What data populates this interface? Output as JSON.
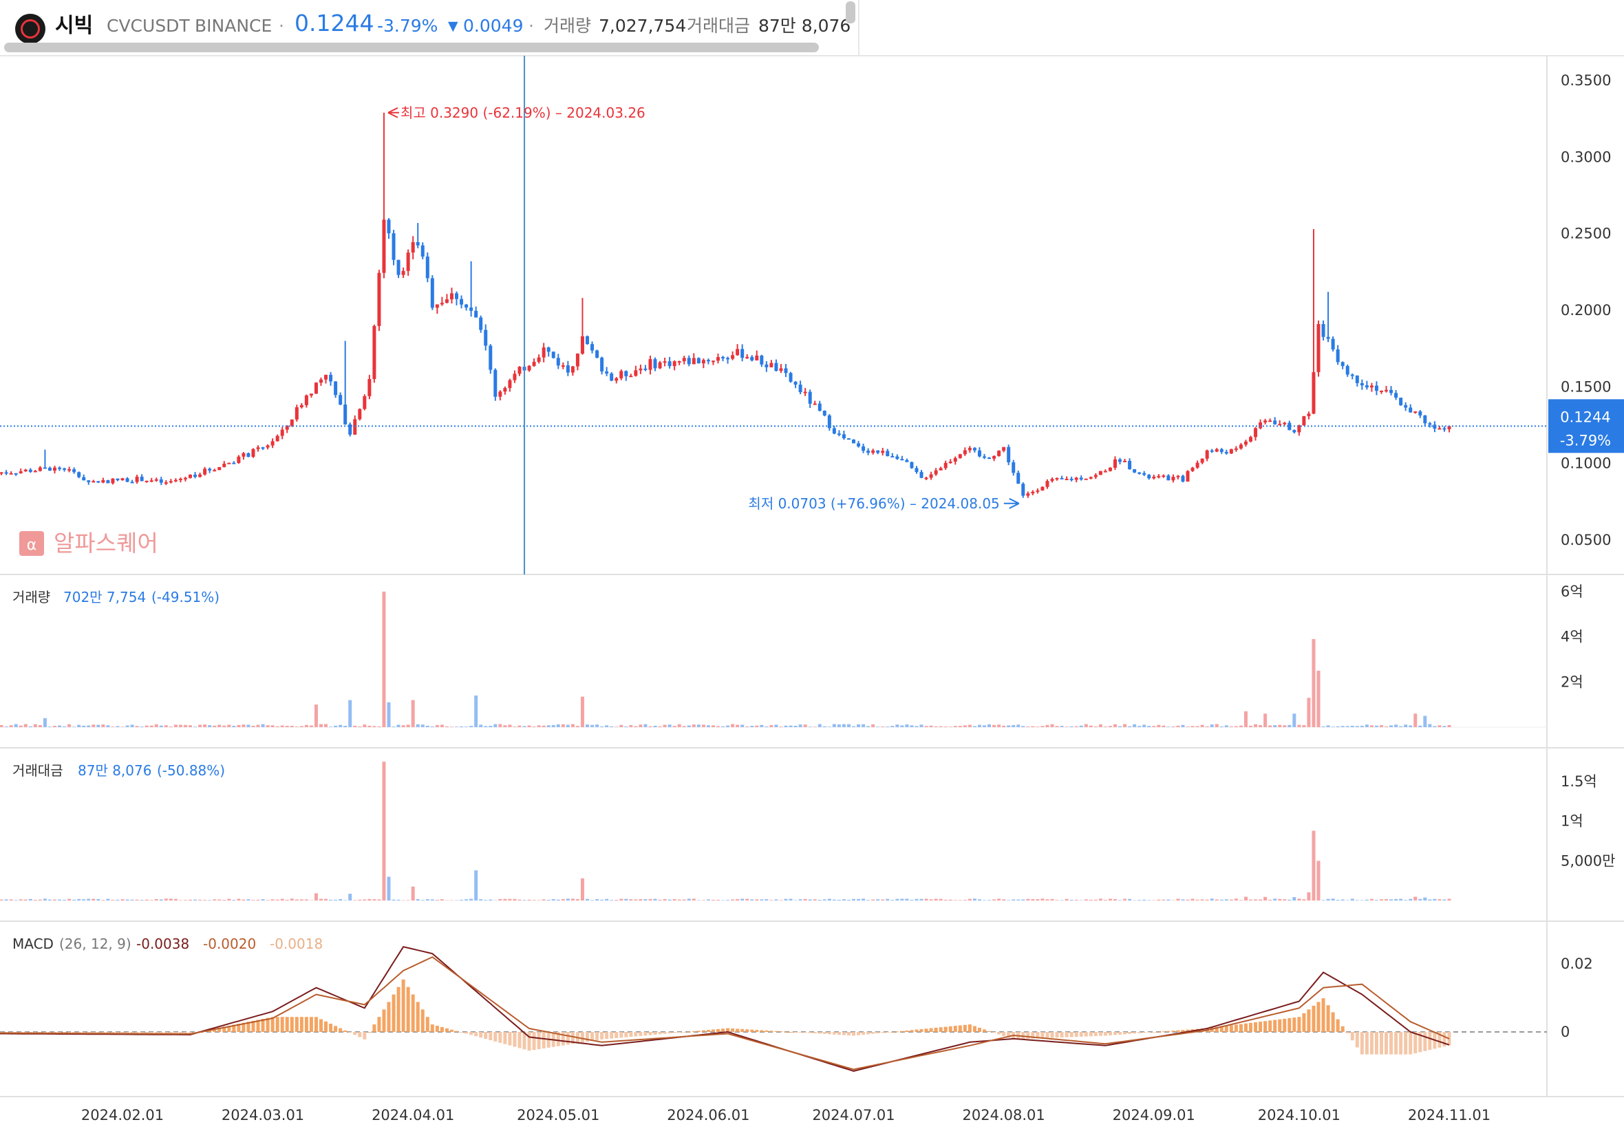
{
  "header": {
    "name": "시빅",
    "symbol": "CVCUSDT",
    "exchange": "BINANCE",
    "sep": "·",
    "price": "0.1244",
    "change_pct": "-3.79%",
    "change_arrow": "▼",
    "change_abs": "0.0049",
    "volume_label": "거래량",
    "volume_value": "7,027,754",
    "amount_label": "거래대금",
    "amount_value": "87만 8,076"
  },
  "watermark": "알파스퀘어",
  "panels": {
    "volume": {
      "label": "거래량",
      "value": "702만 7,754",
      "change": "(-49.51%)",
      "ticks": [
        "6억",
        "4억",
        "2억"
      ]
    },
    "amount": {
      "label": "거래대금",
      "value": "87만 8,076",
      "change": "(-50.88%)",
      "ticks": [
        "1.5억",
        "1억",
        "5,000만"
      ]
    },
    "macd": {
      "label": "MACD",
      "params": "(26, 12, 9)",
      "v1": "-0.0038",
      "v2": "-0.0020",
      "v3": "-0.0018",
      "ticks": [
        "0.02",
        "0"
      ]
    }
  },
  "colors": {
    "up": "#e8343a",
    "down": "#2a7be4",
    "up_vol": "#f5a3a3",
    "down_vol": "#94bdf2",
    "macd_line": "#7a1c1c",
    "signal_line": "#b85c2c",
    "hist_pos": "#f4a462",
    "hist_neg": "#f4c7a8"
  },
  "chart_data": {
    "type": "candlestick",
    "title": "",
    "xlabel": "",
    "ylabel": "",
    "ylim": [
      0.03,
      0.365
    ],
    "y_ticks": [
      "0.3500",
      "0.3000",
      "0.2500",
      "0.2000",
      "0.1500",
      "0.1000",
      "0.0500"
    ],
    "x_ticks": [
      "2024.02.01",
      "2024.03.01",
      "2024.04.01",
      "2024.05.01",
      "2024.06.01",
      "2024.07.01",
      "2024.08.01",
      "2024.09.01",
      "2024.10.01",
      "2024.11.01"
    ],
    "current_price": "0.1244",
    "current_change": "-3.79%",
    "high_annotation": "최고 0.3290 (-62.19%) – 2024.03.26",
    "low_annotation": "최저 0.0703 (+76.96%) – 2024.08.05",
    "close_path": [
      {
        "date": "2024-01-06",
        "price": 0.094
      },
      {
        "date": "2024-01-20",
        "price": 0.097
      },
      {
        "date": "2024-01-25",
        "price": 0.088
      },
      {
        "date": "2024-02-05",
        "price": 0.09
      },
      {
        "date": "2024-02-10",
        "price": 0.087
      },
      {
        "date": "2024-02-20",
        "price": 0.097
      },
      {
        "date": "2024-03-01",
        "price": 0.11
      },
      {
        "date": "2024-03-05",
        "price": 0.12
      },
      {
        "date": "2024-03-09",
        "price": 0.14
      },
      {
        "date": "2024-03-14",
        "price": 0.16
      },
      {
        "date": "2024-03-19",
        "price": 0.12
      },
      {
        "date": "2024-03-23",
        "price": 0.155
      },
      {
        "date": "2024-03-26",
        "price": 0.26
      },
      {
        "date": "2024-03-29",
        "price": 0.225
      },
      {
        "date": "2024-04-02",
        "price": 0.245
      },
      {
        "date": "2024-04-05",
        "price": 0.205
      },
      {
        "date": "2024-04-10",
        "price": 0.21
      },
      {
        "date": "2024-04-15",
        "price": 0.19
      },
      {
        "date": "2024-04-18",
        "price": 0.145
      },
      {
        "date": "2024-04-23",
        "price": 0.16
      },
      {
        "date": "2024-04-28",
        "price": 0.175
      },
      {
        "date": "2024-05-03",
        "price": 0.16
      },
      {
        "date": "2024-05-06",
        "price": 0.18
      },
      {
        "date": "2024-05-12",
        "price": 0.155
      },
      {
        "date": "2024-05-20",
        "price": 0.165
      },
      {
        "date": "2024-06-01",
        "price": 0.168
      },
      {
        "date": "2024-06-08",
        "price": 0.172
      },
      {
        "date": "2024-06-15",
        "price": 0.162
      },
      {
        "date": "2024-06-20",
        "price": 0.148
      },
      {
        "date": "2024-06-28",
        "price": 0.118
      },
      {
        "date": "2024-07-02",
        "price": 0.11
      },
      {
        "date": "2024-07-10",
        "price": 0.105
      },
      {
        "date": "2024-07-15",
        "price": 0.09
      },
      {
        "date": "2024-07-20",
        "price": 0.1
      },
      {
        "date": "2024-07-24",
        "price": 0.11
      },
      {
        "date": "2024-07-28",
        "price": 0.103
      },
      {
        "date": "2024-08-01",
        "price": 0.11
      },
      {
        "date": "2024-08-05",
        "price": 0.078
      },
      {
        "date": "2024-08-10",
        "price": 0.088
      },
      {
        "date": "2024-08-20",
        "price": 0.092
      },
      {
        "date": "2024-08-25",
        "price": 0.103
      },
      {
        "date": "2024-08-30",
        "price": 0.091
      },
      {
        "date": "2024-09-07",
        "price": 0.09
      },
      {
        "date": "2024-09-12",
        "price": 0.108
      },
      {
        "date": "2024-09-18",
        "price": 0.108
      },
      {
        "date": "2024-09-24",
        "price": 0.13
      },
      {
        "date": "2024-09-30",
        "price": 0.122
      },
      {
        "date": "2024-10-03",
        "price": 0.135
      },
      {
        "date": "2024-10-05",
        "price": 0.19
      },
      {
        "date": "2024-10-08",
        "price": 0.175
      },
      {
        "date": "2024-10-11",
        "price": 0.158
      },
      {
        "date": "2024-10-18",
        "price": 0.148
      },
      {
        "date": "2024-10-24",
        "price": 0.135
      },
      {
        "date": "2024-10-28",
        "price": 0.125
      },
      {
        "date": "2024-11-01",
        "price": 0.1244
      }
    ],
    "wick_highs": [
      {
        "date": "2024-01-16",
        "price": 0.109
      },
      {
        "date": "2024-03-18",
        "price": 0.18
      },
      {
        "date": "2024-03-26",
        "price": 0.329
      },
      {
        "date": "2024-04-02",
        "price": 0.257
      },
      {
        "date": "2024-04-13",
        "price": 0.232
      },
      {
        "date": "2024-05-06",
        "price": 0.208
      },
      {
        "date": "2024-10-04",
        "price": 0.253
      },
      {
        "date": "2024-10-07",
        "price": 0.212
      }
    ],
    "volume_spikes": [
      {
        "date": "2024-01-16",
        "value": 0.4
      },
      {
        "date": "2024-03-12",
        "value": 1.0
      },
      {
        "date": "2024-03-19",
        "value": 1.2
      },
      {
        "date": "2024-03-26",
        "value": 6.0
      },
      {
        "date": "2024-03-27",
        "value": 1.1
      },
      {
        "date": "2024-04-01",
        "value": 1.2
      },
      {
        "date": "2024-04-14",
        "value": 1.4
      },
      {
        "date": "2024-05-06",
        "value": 1.35
      },
      {
        "date": "2024-09-20",
        "value": 0.7
      },
      {
        "date": "2024-09-24",
        "value": 0.6
      },
      {
        "date": "2024-09-30",
        "value": 0.6
      },
      {
        "date": "2024-10-03",
        "value": 1.3
      },
      {
        "date": "2024-10-04",
        "value": 3.9
      },
      {
        "date": "2024-10-05",
        "value": 2.5
      },
      {
        "date": "2024-10-25",
        "value": 0.6
      },
      {
        "date": "2024-10-27",
        "value": 0.5
      }
    ],
    "amount_spikes": [
      {
        "date": "2024-03-26",
        "value": 1.75
      },
      {
        "date": "2024-03-27",
        "value": 0.3
      },
      {
        "date": "2024-04-14",
        "value": 0.38
      },
      {
        "date": "2024-05-06",
        "value": 0.28
      },
      {
        "date": "2024-10-04",
        "value": 0.88
      },
      {
        "date": "2024-10-05",
        "value": 0.5
      }
    ],
    "macd_series": [
      {
        "date": "2024-01-06",
        "macd": -0.0005,
        "signal": -0.0003
      },
      {
        "date": "2024-02-15",
        "macd": -0.0008,
        "signal": -0.0006
      },
      {
        "date": "2024-03-03",
        "macd": 0.006,
        "signal": 0.004
      },
      {
        "date": "2024-03-12",
        "macd": 0.013,
        "signal": 0.011
      },
      {
        "date": "2024-03-22",
        "macd": 0.007,
        "signal": 0.008
      },
      {
        "date": "2024-03-30",
        "macd": 0.025,
        "signal": 0.018
      },
      {
        "date": "2024-04-05",
        "macd": 0.023,
        "signal": 0.022
      },
      {
        "date": "2024-04-25",
        "macd": -0.0015,
        "signal": 0.001
      },
      {
        "date": "2024-05-10",
        "macd": -0.004,
        "signal": -0.003
      },
      {
        "date": "2024-06-05",
        "macd": 0.0,
        "signal": -0.0005
      },
      {
        "date": "2024-07-01",
        "macd": -0.0115,
        "signal": -0.011
      },
      {
        "date": "2024-07-25",
        "macd": -0.003,
        "signal": -0.004
      },
      {
        "date": "2024-08-03",
        "macd": -0.002,
        "signal": -0.001
      },
      {
        "date": "2024-08-22",
        "macd": -0.004,
        "signal": -0.0035
      },
      {
        "date": "2024-09-12",
        "macd": 0.001,
        "signal": 0.0005
      },
      {
        "date": "2024-10-01",
        "macd": 0.009,
        "signal": 0.007
      },
      {
        "date": "2024-10-06",
        "macd": 0.0175,
        "signal": 0.013
      },
      {
        "date": "2024-10-14",
        "macd": 0.011,
        "signal": 0.014
      },
      {
        "date": "2024-10-24",
        "macd": 0.0,
        "signal": 0.003
      },
      {
        "date": "2024-11-01",
        "macd": -0.0038,
        "signal": -0.002
      }
    ]
  }
}
